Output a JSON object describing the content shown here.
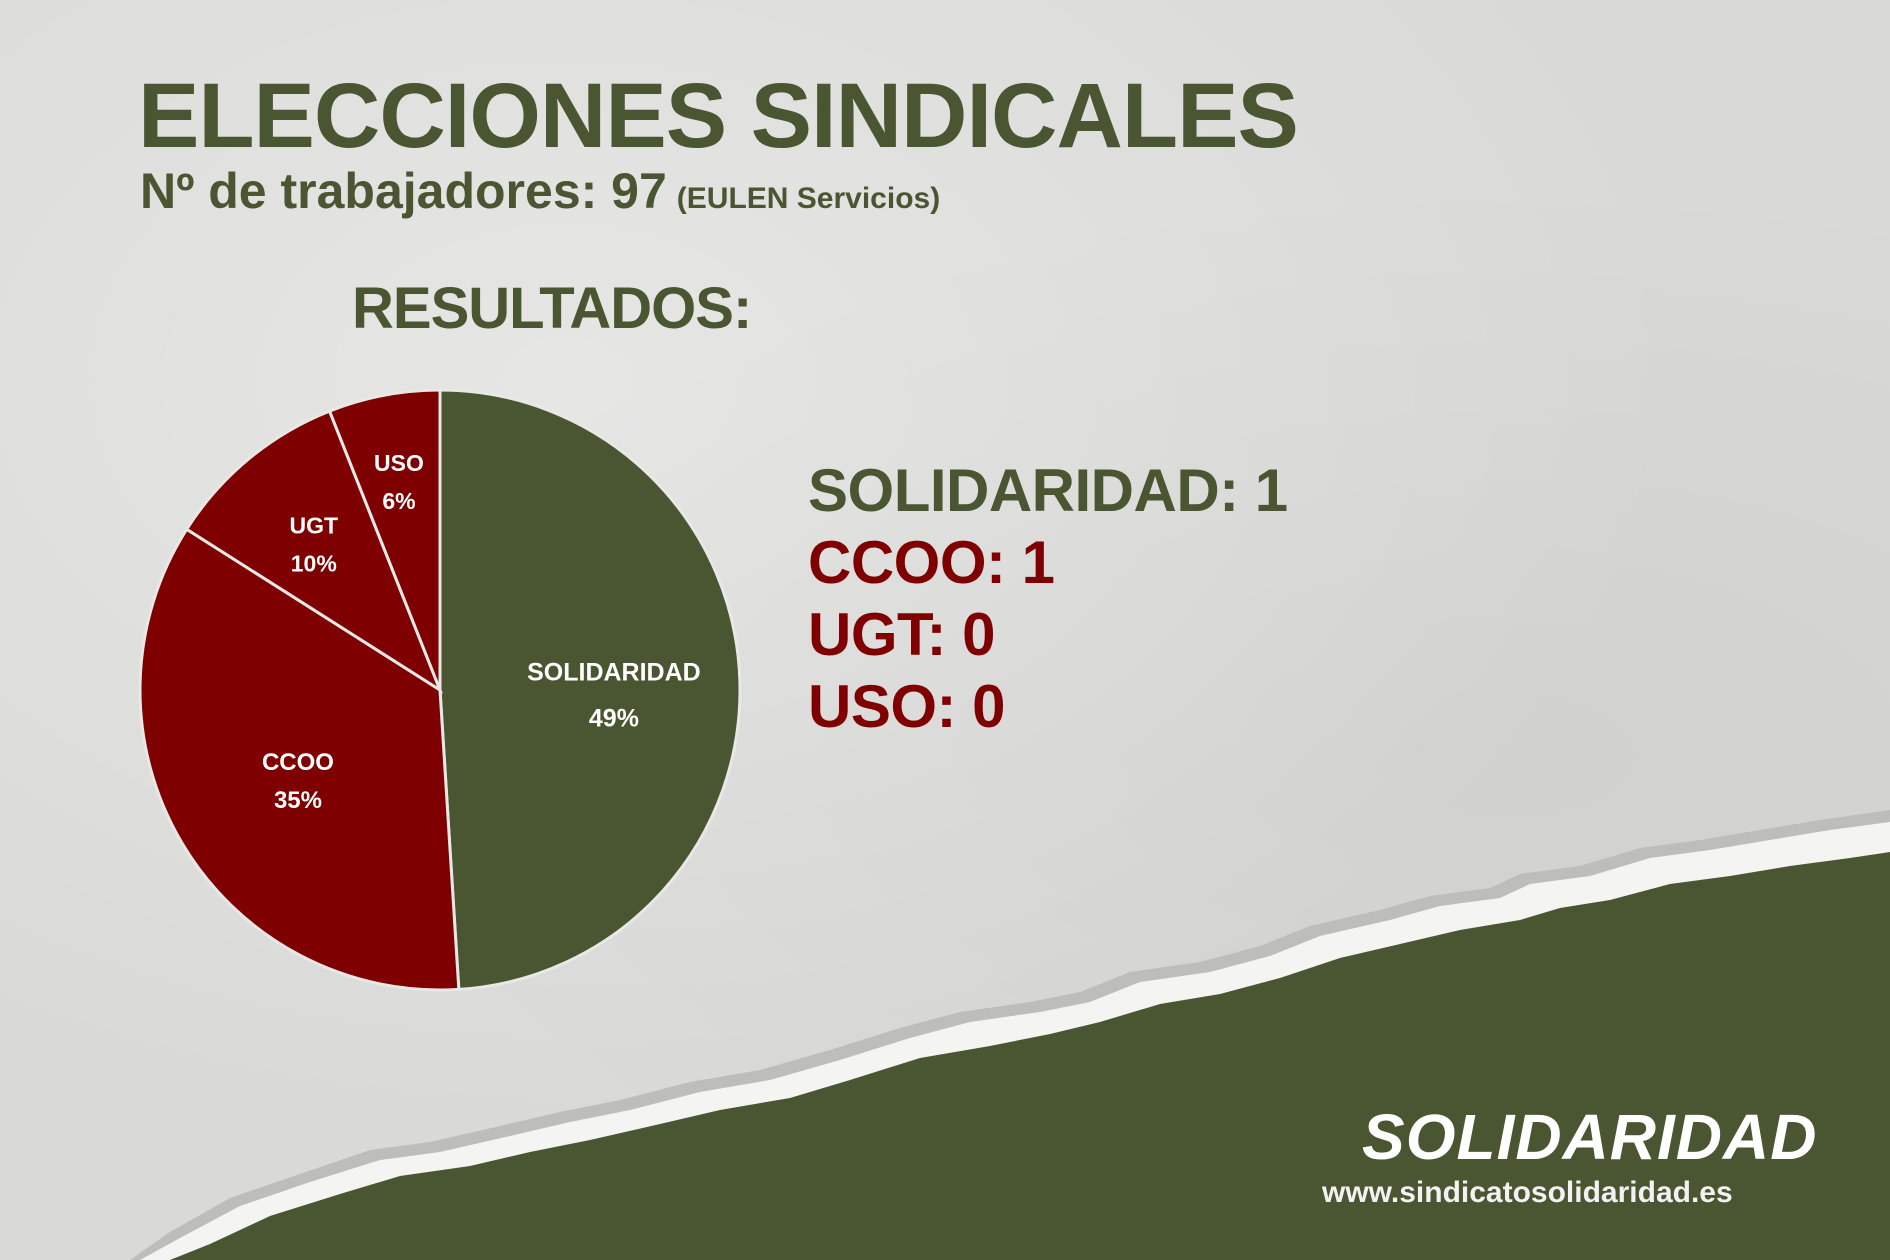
{
  "header": {
    "title": "ELECCIONES SINDICALES",
    "subtitle": "Nº de trabajadores: 97",
    "subtitle_note": "(EULEN Servicios)"
  },
  "results_heading": "RESULTADOS:",
  "colors": {
    "green": "#4a5531",
    "red": "#7f0000",
    "white": "#ffffff"
  },
  "chart_data": {
    "type": "pie",
    "title": "",
    "slices": [
      {
        "label": "SOLIDARIDAD",
        "value": 49,
        "value_label": "49%",
        "color": "#4a5531"
      },
      {
        "label": "CCOO",
        "value": 35,
        "value_label": "35%",
        "color": "#7f0000"
      },
      {
        "label": "UGT",
        "value": 10,
        "value_label": "10%",
        "color": "#7f0000"
      },
      {
        "label": "USO",
        "value": 6,
        "value_label": "6%",
        "color": "#7f0000"
      }
    ],
    "legend": "none"
  },
  "seats": [
    {
      "text": "SOLIDARIDAD: 1",
      "color": "#4a5531"
    },
    {
      "text": "CCOO: 1",
      "color": "#7f0000"
    },
    {
      "text": "UGT: 0",
      "color": "#7f0000"
    },
    {
      "text": "USO: 0",
      "color": "#7f0000"
    }
  ],
  "footer": {
    "brand": "SOLIDARIDAD",
    "website": "www.sindicatosolidaridad.es"
  }
}
